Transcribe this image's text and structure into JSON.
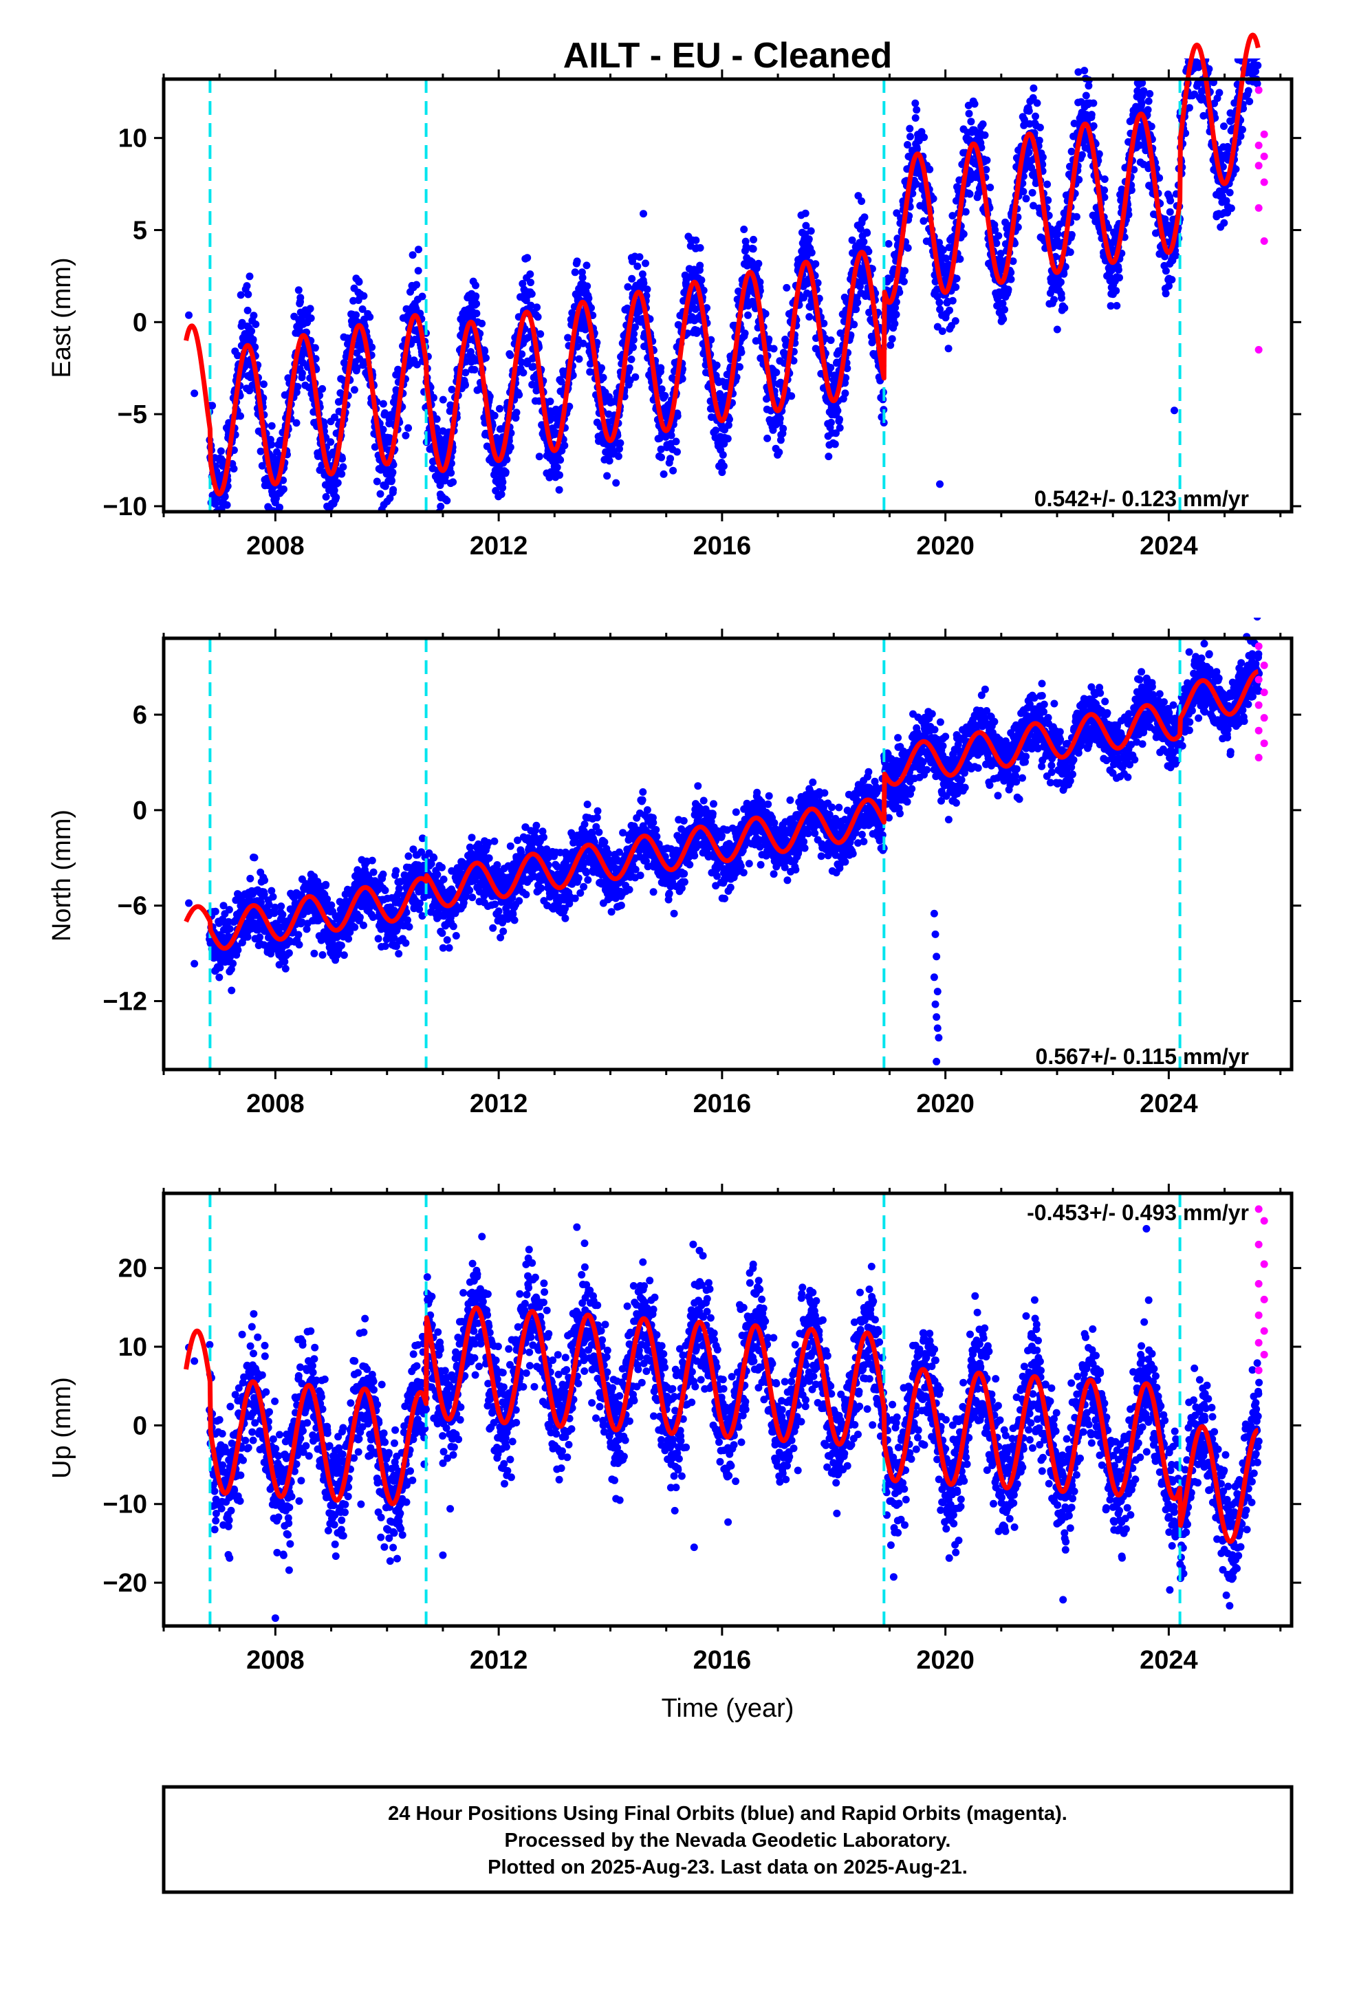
{
  "title": "AILT  - EU - Cleaned",
  "xlabel": "Time (year)",
  "x_ticks": [
    2008,
    2012,
    2016,
    2020,
    2024
  ],
  "footer": [
    "24 Hour Positions Using Final Orbits (blue) and Rapid Orbits (magenta).",
    "Processed by the Nevada Geodetic Laboratory.",
    "Plotted on 2025-Aug-23. Last data on 2025-Aug-21."
  ],
  "colors": {
    "final_orbits": "#0000ff",
    "rapid_orbits": "#ff00ff",
    "model_fit": "#ff0000",
    "offset_lines": "#00e5ee",
    "frame": "#000000"
  },
  "chart_data": [
    {
      "type": "scatter",
      "component": "East",
      "ylabel": "East (mm)",
      "xlim": [
        2006.0,
        2026.2
      ],
      "ylim": [
        -10.3,
        13.2
      ],
      "y_ticks": [
        -10,
        -5,
        0,
        5,
        10
      ],
      "grid": false,
      "rate_label": "0.542+/- 0.123 mm/yr",
      "rate_position": "bottom-right",
      "offset_epochs": [
        2006.83,
        2010.7,
        2018.9,
        2024.2
      ],
      "model": {
        "start": 2006.4,
        "end": 2025.6,
        "segments": [
          {
            "end": 2006.83,
            "level": 0.5
          },
          {
            "end": 2010.7,
            "level": -1.1
          },
          {
            "end": 2018.9,
            "level": -2.0
          },
          {
            "end": 2024.2,
            "level": 2.8
          },
          {
            "end": 2025.7,
            "level": 6.0
          }
        ],
        "trend_mm_per_yr": 0.542,
        "annual_amplitude": 3.9,
        "annual_peak": 0.5
      },
      "scatter_noise_mm": 1.3,
      "outliers": [
        [
          2019.9,
          -8.8
        ],
        [
          2006.9,
          -9.8
        ],
        [
          2024.1,
          -4.8
        ]
      ],
      "rapid_points": [
        [
          2025.66,
          12.6
        ],
        [
          2025.66,
          10.2
        ],
        [
          2025.66,
          9.6
        ],
        [
          2025.66,
          9.0
        ],
        [
          2025.66,
          8.5
        ],
        [
          2025.66,
          7.6
        ],
        [
          2025.66,
          6.2
        ],
        [
          2025.66,
          4.4
        ],
        [
          2025.66,
          -1.5
        ]
      ]
    },
    {
      "type": "scatter",
      "component": "North",
      "ylabel": "North (mm)",
      "xlim": [
        2006.0,
        2026.2
      ],
      "ylim": [
        -16.3,
        10.8
      ],
      "y_ticks": [
        -12,
        -6,
        0,
        6
      ],
      "grid": false,
      "rate_label": "0.567+/- 0.115 mm/yr",
      "rate_position": "bottom-right",
      "offset_epochs": [
        2006.83,
        2010.7,
        2018.9,
        2024.2
      ],
      "model": {
        "start": 2006.4,
        "end": 2025.6,
        "segments": [
          {
            "end": 2006.83,
            "level": -2.5
          },
          {
            "end": 2010.7,
            "level": -3.0
          },
          {
            "end": 2018.9,
            "level": -2.6
          },
          {
            "end": 2024.2,
            "level": 0.5
          },
          {
            "end": 2025.7,
            "level": 1.5
          }
        ],
        "trend_mm_per_yr": 0.567,
        "annual_amplitude": 1.2,
        "annual_peak": 0.6
      },
      "scatter_noise_mm": 1.0,
      "outliers": [
        [
          2019.8,
          -6.5
        ],
        [
          2019.82,
          -7.8
        ],
        [
          2019.84,
          -9.2
        ],
        [
          2019.8,
          -10.5
        ],
        [
          2019.86,
          -11.4
        ],
        [
          2019.82,
          -12.2
        ],
        [
          2019.84,
          -13.0
        ],
        [
          2019.86,
          -13.7
        ],
        [
          2019.88,
          -14.3
        ],
        [
          2019.84,
          -15.8
        ]
      ],
      "rapid_points": [
        [
          2025.66,
          10.3
        ],
        [
          2025.66,
          9.1
        ],
        [
          2025.66,
          8.2
        ],
        [
          2025.66,
          7.4
        ],
        [
          2025.66,
          6.6
        ],
        [
          2025.66,
          5.8
        ],
        [
          2025.66,
          5.0
        ],
        [
          2025.66,
          4.2
        ],
        [
          2025.66,
          3.3
        ]
      ]
    },
    {
      "type": "scatter",
      "component": "Up",
      "ylabel": "Up (mm)",
      "xlim": [
        2006.0,
        2026.2
      ],
      "ylim": [
        -25.5,
        29.5
      ],
      "y_ticks": [
        -20,
        -10,
        0,
        10,
        20
      ],
      "grid": false,
      "rate_label": "-0.453+/- 0.493 mm/yr",
      "rate_position": "top-right",
      "offset_epochs": [
        2006.83,
        2010.7,
        2018.9,
        2024.2
      ],
      "model": {
        "start": 2006.4,
        "end": 2025.6,
        "segments": [
          {
            "end": 2006.83,
            "level": 1.0
          },
          {
            "end": 2010.7,
            "level": -5.0
          },
          {
            "end": 2018.9,
            "level": 6.2
          },
          {
            "end": 2024.2,
            "level": 2.0
          },
          {
            "end": 2025.7,
            "level": -3.0
          }
        ],
        "trend_mm_per_yr": -0.453,
        "annual_amplitude": 7.2,
        "annual_peak": 0.6
      },
      "scatter_noise_mm": 3.6,
      "outliers": [
        [
          2011.0,
          -16.5
        ],
        [
          2015.5,
          -15.5
        ],
        [
          2008.0,
          -24.5
        ],
        [
          2011.7,
          24.0
        ],
        [
          2013.4,
          25.2
        ],
        [
          2023.6,
          25.0
        ]
      ],
      "rapid_points": [
        [
          2025.66,
          27.5
        ],
        [
          2025.66,
          26.0
        ],
        [
          2025.66,
          23.0
        ],
        [
          2025.66,
          20.5
        ],
        [
          2025.66,
          18.0
        ],
        [
          2025.66,
          16.0
        ],
        [
          2025.66,
          14.0
        ],
        [
          2025.66,
          12.0
        ],
        [
          2025.66,
          10.5
        ],
        [
          2025.66,
          9.0
        ],
        [
          2025.66,
          7.0
        ]
      ]
    }
  ]
}
